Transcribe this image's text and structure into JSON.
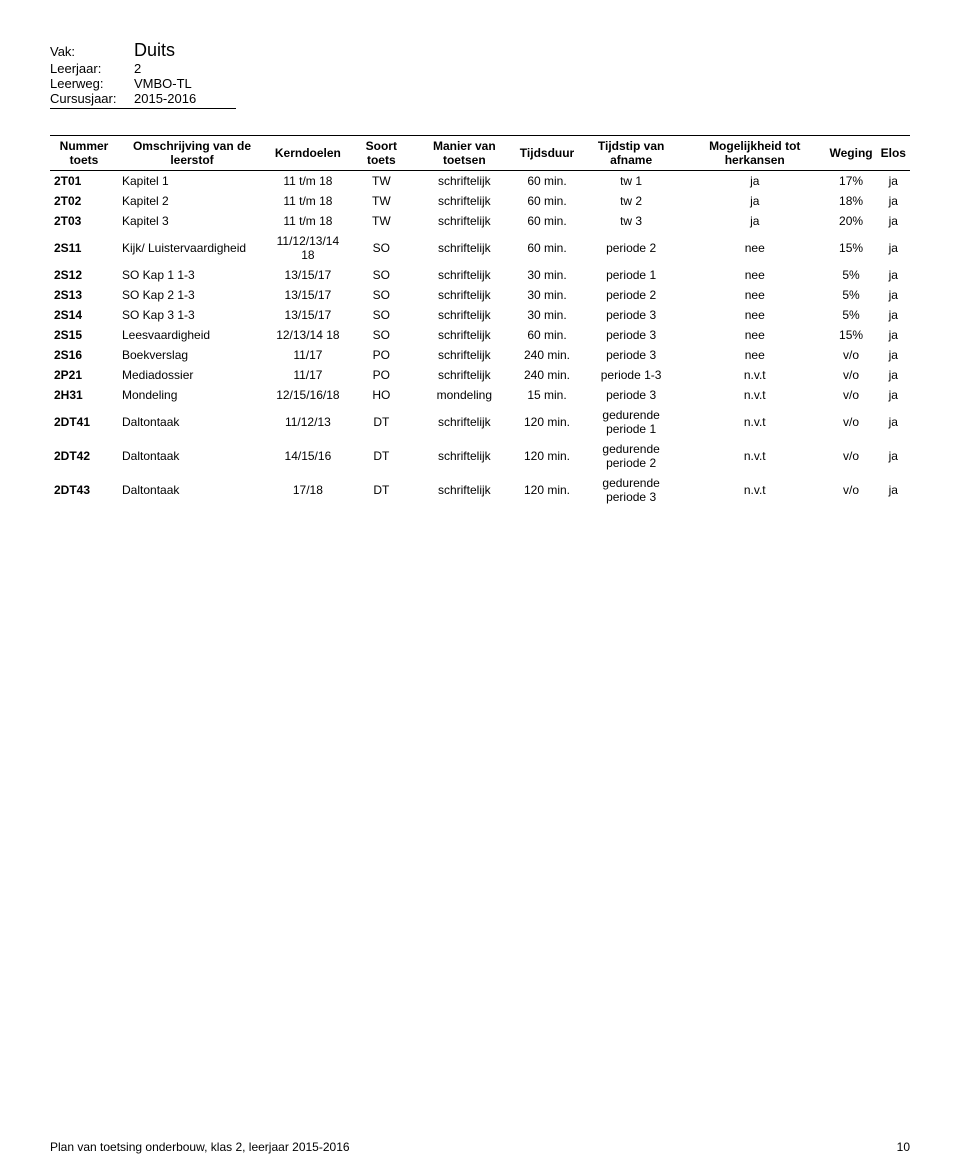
{
  "meta": {
    "labels": {
      "vak": "Vak:",
      "leerjaar": "Leerjaar:",
      "leerweg": "Leerweg:",
      "cursusjaar": "Cursusjaar:"
    },
    "vak": "Duits",
    "leerjaar": "2",
    "leerweg": "VMBO-TL",
    "cursusjaar": "2015-2016"
  },
  "headers": [
    "Nummer toets",
    "Omschrijving van de leerstof",
    "Kerndoelen",
    "Soort toets",
    "Manier van toetsen",
    "Tijdsduur",
    "Tijdstip van afname",
    "Mogelijkheid tot herkansen",
    "Weging",
    "Elos"
  ],
  "rows": [
    [
      "2T01",
      "Kapitel 1",
      "11 t/m 18",
      "TW",
      "schriftelijk",
      "60 min.",
      "tw 1",
      "ja",
      "17%",
      "ja"
    ],
    [
      "2T02",
      "Kapitel 2",
      "11 t/m 18",
      "TW",
      "schriftelijk",
      "60 min.",
      "tw 2",
      "ja",
      "18%",
      "ja"
    ],
    [
      "2T03",
      "Kapitel 3",
      "11 t/m 18",
      "TW",
      "schriftelijk",
      "60 min.",
      "tw 3",
      "ja",
      "20%",
      "ja"
    ],
    [
      "2S11",
      "Kijk/ Luistervaardigheid",
      "11/12/13/14 18",
      "SO",
      "schriftelijk",
      "60 min.",
      "periode 2",
      "nee",
      "15%",
      "ja"
    ],
    [
      "2S12",
      "SO Kap 1 1-3",
      "13/15/17",
      "SO",
      "schriftelijk",
      "30 min.",
      "periode 1",
      "nee",
      "5%",
      "ja"
    ],
    [
      "2S13",
      "SO Kap 2 1-3",
      "13/15/17",
      "SO",
      "schriftelijk",
      "30 min.",
      "periode 2",
      "nee",
      "5%",
      "ja"
    ],
    [
      "2S14",
      "SO Kap 3 1-3",
      "13/15/17",
      "SO",
      "schriftelijk",
      "30 min.",
      "periode 3",
      "nee",
      "5%",
      "ja"
    ],
    [
      "2S15",
      "Leesvaardigheid",
      "12/13/14 18",
      "SO",
      "schriftelijk",
      "60 min.",
      "periode 3",
      "nee",
      "15%",
      "ja"
    ],
    [
      "2S16",
      "Boekverslag",
      "11/17",
      "PO",
      "schriftelijk",
      "240 min.",
      "periode 3",
      "nee",
      "v/o",
      "ja"
    ],
    [
      "2P21",
      "Mediadossier",
      "11/17",
      "PO",
      "schriftelijk",
      "240 min.",
      "periode 1-3",
      "n.v.t",
      "v/o",
      "ja"
    ],
    [
      "2H31",
      "Mondeling",
      "12/15/16/18",
      "HO",
      "mondeling",
      "15 min.",
      "periode 3",
      "n.v.t",
      "v/o",
      "ja"
    ],
    [
      "2DT41",
      "Daltontaak",
      "11/12/13",
      "DT",
      "schriftelijk",
      "120 min.",
      "gedurende periode 1",
      "n.v.t",
      "v/o",
      "ja"
    ],
    [
      "2DT42",
      "Daltontaak",
      "14/15/16",
      "DT",
      "schriftelijk",
      "120 min.",
      "gedurende periode 2",
      "n.v.t",
      "v/o",
      "ja"
    ],
    [
      "2DT43",
      "Daltontaak",
      "17/18",
      "DT",
      "schriftelijk",
      "120 min.",
      "gedurende periode 3",
      "n.v.t",
      "v/o",
      "ja"
    ]
  ],
  "footer": {
    "text": "Plan van toetsing onderbouw, klas 2, leerjaar 2015-2016",
    "page": "10"
  }
}
